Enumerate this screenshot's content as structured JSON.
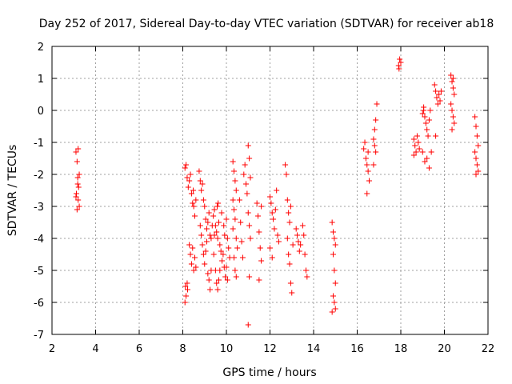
{
  "chart_data": {
    "type": "scatter",
    "title": "Day 252 of 2017, Sidereal Day-to-day VTEC variation (SDTVAR) for receiver ab18",
    "xlabel": "GPS time / hours",
    "ylabel": "SDTVAR / TECUs",
    "xlim": [
      2,
      22
    ],
    "ylim": [
      -7,
      2
    ],
    "xticks": [
      2,
      4,
      6,
      8,
      10,
      12,
      14,
      16,
      18,
      20,
      22
    ],
    "yticks": [
      -7,
      -6,
      -5,
      -4,
      -3,
      -2,
      -1,
      0,
      1,
      2
    ],
    "xtick_labels": [
      "2",
      "4",
      "6",
      "8",
      "10",
      "12",
      "14",
      "16",
      "18",
      "20",
      "22"
    ],
    "ytick_labels": [
      "-7",
      "-6",
      "-5",
      "-4",
      "-3",
      "-2",
      "-1",
      "0",
      "1",
      "2"
    ],
    "grid": true,
    "marker": "plus",
    "color": "#ff0000",
    "series": [
      {
        "name": "SDTVAR",
        "points": [
          [
            3.1,
            -1.3
          ],
          [
            3.15,
            -1.6
          ],
          [
            3.2,
            -1.2
          ],
          [
            3.18,
            -2.1
          ],
          [
            3.22,
            -2.4
          ],
          [
            3.25,
            -2.0
          ],
          [
            3.12,
            -2.6
          ],
          [
            3.2,
            -2.8
          ],
          [
            3.15,
            -3.1
          ],
          [
            3.25,
            -3.0
          ],
          [
            3.18,
            -2.3
          ],
          [
            3.1,
            -2.7
          ],
          [
            8.1,
            -1.8
          ],
          [
            8.2,
            -2.1
          ],
          [
            8.25,
            -2.4
          ],
          [
            8.3,
            -2.2
          ],
          [
            8.35,
            -2.0
          ],
          [
            8.4,
            -2.6
          ],
          [
            8.15,
            -1.7
          ],
          [
            8.45,
            -2.9
          ],
          [
            8.5,
            -3.0
          ],
          [
            8.55,
            -3.3
          ],
          [
            8.6,
            -2.8
          ],
          [
            8.48,
            -2.5
          ],
          [
            8.12,
            -5.5
          ],
          [
            8.15,
            -5.8
          ],
          [
            8.2,
            -5.4
          ],
          [
            8.1,
            -6.0
          ],
          [
            8.22,
            -5.6
          ],
          [
            8.3,
            -4.2
          ],
          [
            8.35,
            -4.5
          ],
          [
            8.4,
            -4.8
          ],
          [
            8.45,
            -4.3
          ],
          [
            8.5,
            -5.0
          ],
          [
            8.55,
            -4.6
          ],
          [
            8.6,
            -4.9
          ],
          [
            8.8,
            -2.2
          ],
          [
            8.85,
            -2.5
          ],
          [
            8.9,
            -2.3
          ],
          [
            8.95,
            -2.8
          ],
          [
            9.0,
            -3.0
          ],
          [
            9.05,
            -3.4
          ],
          [
            9.1,
            -3.7
          ],
          [
            9.15,
            -3.5
          ],
          [
            9.2,
            -3.2
          ],
          [
            9.25,
            -3.9
          ],
          [
            9.3,
            -4.0
          ],
          [
            9.35,
            -3.6
          ],
          [
            8.75,
            -1.9
          ],
          [
            8.8,
            -3.6
          ],
          [
            8.85,
            -3.9
          ],
          [
            8.9,
            -4.2
          ],
          [
            8.95,
            -4.5
          ],
          [
            9.0,
            -4.8
          ],
          [
            9.05,
            -4.4
          ],
          [
            9.1,
            -4.1
          ],
          [
            9.15,
            -5.1
          ],
          [
            9.2,
            -5.3
          ],
          [
            9.25,
            -5.6
          ],
          [
            9.3,
            -5.0
          ],
          [
            9.4,
            -3.3
          ],
          [
            9.45,
            -3.1
          ],
          [
            9.5,
            -3.6
          ],
          [
            9.55,
            -3.8
          ],
          [
            9.6,
            -4.0
          ],
          [
            9.65,
            -3.5
          ],
          [
            9.7,
            -4.2
          ],
          [
            9.75,
            -4.4
          ],
          [
            9.8,
            -4.7
          ],
          [
            9.85,
            -4.5
          ],
          [
            9.9,
            -4.9
          ],
          [
            9.95,
            -5.2
          ],
          [
            9.42,
            -4.5
          ],
          [
            9.5,
            -5.0
          ],
          [
            9.55,
            -5.4
          ],
          [
            9.6,
            -5.6
          ],
          [
            9.65,
            -5.3
          ],
          [
            9.7,
            -5.0
          ],
          [
            9.45,
            -3.9
          ],
          [
            9.58,
            -3.0
          ],
          [
            9.62,
            -2.9
          ],
          [
            9.78,
            -3.2
          ],
          [
            9.88,
            -3.6
          ],
          [
            9.92,
            -3.9
          ],
          [
            10.0,
            -3.4
          ],
          [
            10.05,
            -4.0
          ],
          [
            10.1,
            -4.3
          ],
          [
            10.15,
            -4.6
          ],
          [
            10.0,
            -4.9
          ],
          [
            10.05,
            -5.3
          ],
          [
            10.3,
            -1.6
          ],
          [
            10.35,
            -1.9
          ],
          [
            10.4,
            -2.2
          ],
          [
            10.45,
            -2.5
          ],
          [
            10.3,
            -2.8
          ],
          [
            10.35,
            -3.1
          ],
          [
            10.4,
            -3.4
          ],
          [
            10.3,
            -3.7
          ],
          [
            10.45,
            -4.0
          ],
          [
            10.5,
            -4.3
          ],
          [
            10.35,
            -4.6
          ],
          [
            10.4,
            -5.0
          ],
          [
            10.45,
            -5.2
          ],
          [
            10.6,
            -2.8
          ],
          [
            10.65,
            -3.5
          ],
          [
            10.7,
            -4.1
          ],
          [
            10.75,
            -4.6
          ],
          [
            10.8,
            -2.0
          ],
          [
            10.85,
            -1.7
          ],
          [
            10.9,
            -2.3
          ],
          [
            10.95,
            -2.6
          ],
          [
            11.0,
            -1.1
          ],
          [
            11.05,
            -1.5
          ],
          [
            11.1,
            -2.1
          ],
          [
            11.0,
            -3.2
          ],
          [
            11.05,
            -3.6
          ],
          [
            11.1,
            -4.0
          ],
          [
            11.05,
            -5.2
          ],
          [
            11.0,
            -6.7
          ],
          [
            11.4,
            -2.9
          ],
          [
            11.45,
            -3.3
          ],
          [
            11.5,
            -3.8
          ],
          [
            11.55,
            -4.3
          ],
          [
            11.6,
            -4.7
          ],
          [
            11.5,
            -5.3
          ],
          [
            11.6,
            -3.0
          ],
          [
            12.0,
            -2.7
          ],
          [
            12.05,
            -2.9
          ],
          [
            12.1,
            -3.2
          ],
          [
            12.15,
            -3.4
          ],
          [
            12.2,
            -3.7
          ],
          [
            12.25,
            -3.1
          ],
          [
            12.3,
            -2.5
          ],
          [
            12.35,
            -3.9
          ],
          [
            12.4,
            -4.1
          ],
          [
            12.0,
            -4.3
          ],
          [
            12.1,
            -4.6
          ],
          [
            12.7,
            -1.7
          ],
          [
            12.75,
            -2.0
          ],
          [
            12.8,
            -2.8
          ],
          [
            12.85,
            -3.2
          ],
          [
            12.9,
            -3.5
          ],
          [
            12.95,
            -3.0
          ],
          [
            12.8,
            -4.0
          ],
          [
            12.85,
            -4.5
          ],
          [
            12.9,
            -4.8
          ],
          [
            12.95,
            -5.4
          ],
          [
            13.0,
            -5.7
          ],
          [
            13.05,
            -4.2
          ],
          [
            13.2,
            -3.7
          ],
          [
            13.25,
            -3.9
          ],
          [
            13.3,
            -4.1
          ],
          [
            13.35,
            -4.4
          ],
          [
            13.4,
            -4.2
          ],
          [
            13.5,
            -3.6
          ],
          [
            13.55,
            -3.9
          ],
          [
            13.6,
            -4.5
          ],
          [
            13.65,
            -5.0
          ],
          [
            13.7,
            -5.2
          ],
          [
            14.85,
            -3.5
          ],
          [
            14.9,
            -3.8
          ],
          [
            14.95,
            -4.0
          ],
          [
            15.0,
            -4.2
          ],
          [
            14.9,
            -4.5
          ],
          [
            14.95,
            -5.0
          ],
          [
            15.0,
            -5.4
          ],
          [
            14.9,
            -5.8
          ],
          [
            14.95,
            -6.0
          ],
          [
            15.0,
            -6.2
          ],
          [
            14.85,
            -6.3
          ],
          [
            16.3,
            -1.2
          ],
          [
            16.35,
            -1.0
          ],
          [
            16.4,
            -1.5
          ],
          [
            16.45,
            -1.7
          ],
          [
            16.5,
            -1.9
          ],
          [
            16.55,
            -2.2
          ],
          [
            16.45,
            -2.6
          ],
          [
            16.5,
            -1.3
          ],
          [
            16.8,
            -0.6
          ],
          [
            16.85,
            -0.3
          ],
          [
            16.9,
            0.2
          ],
          [
            16.75,
            -0.9
          ],
          [
            16.8,
            -1.1
          ],
          [
            16.85,
            -1.3
          ],
          [
            16.75,
            -1.7
          ],
          [
            17.9,
            1.4
          ],
          [
            17.95,
            1.6
          ],
          [
            18.0,
            1.5
          ],
          [
            17.92,
            1.3
          ],
          [
            18.6,
            -0.9
          ],
          [
            18.65,
            -1.1
          ],
          [
            18.7,
            -1.3
          ],
          [
            18.75,
            -0.8
          ],
          [
            18.8,
            -1.0
          ],
          [
            18.85,
            -1.2
          ],
          [
            18.6,
            -1.4
          ],
          [
            19.0,
            -0.1
          ],
          [
            19.05,
            0.0
          ],
          [
            19.1,
            -0.2
          ],
          [
            19.15,
            -0.4
          ],
          [
            19.2,
            -0.6
          ],
          [
            19.25,
            -0.8
          ],
          [
            19.3,
            -0.3
          ],
          [
            19.35,
            0.0
          ],
          [
            19.0,
            -1.3
          ],
          [
            19.1,
            -1.6
          ],
          [
            19.2,
            -1.5
          ],
          [
            19.3,
            -1.8
          ],
          [
            19.4,
            -1.3
          ],
          [
            19.05,
            0.1
          ],
          [
            19.55,
            0.8
          ],
          [
            19.6,
            0.6
          ],
          [
            19.65,
            0.4
          ],
          [
            19.7,
            0.2
          ],
          [
            19.75,
            0.5
          ],
          [
            19.8,
            0.3
          ],
          [
            19.85,
            0.6
          ],
          [
            19.6,
            -0.8
          ],
          [
            20.3,
            1.1
          ],
          [
            20.35,
            0.9
          ],
          [
            20.4,
            0.7
          ],
          [
            20.45,
            0.5
          ],
          [
            20.3,
            0.2
          ],
          [
            20.35,
            0.0
          ],
          [
            20.4,
            -0.2
          ],
          [
            20.45,
            -0.4
          ],
          [
            20.35,
            -0.6
          ],
          [
            20.4,
            1.0
          ],
          [
            21.4,
            -0.2
          ],
          [
            21.45,
            -0.5
          ],
          [
            21.5,
            -0.8
          ],
          [
            21.55,
            -1.1
          ],
          [
            21.4,
            -1.3
          ],
          [
            21.45,
            -1.5
          ],
          [
            21.5,
            -1.7
          ],
          [
            21.55,
            -1.9
          ],
          [
            21.45,
            -2.0
          ]
        ]
      }
    ]
  }
}
